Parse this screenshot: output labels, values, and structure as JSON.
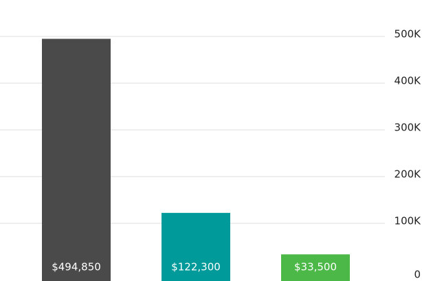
{
  "chart_data": {
    "type": "bar",
    "values": [
      494850,
      122300,
      33500
    ],
    "value_labels": [
      "$494,850",
      "$122,300",
      "$33,500"
    ],
    "colors": [
      "#4a4a4a",
      "#009a9a",
      "#4cb848"
    ],
    "ylim": [
      0,
      500000
    ],
    "yticks": [
      0,
      {
        "value": 100000,
        "label": "100K"
      },
      {
        "value": 200000,
        "label": "200K"
      },
      {
        "value": 300000,
        "label": "300K"
      },
      {
        "value": 400000,
        "label": "400K"
      },
      {
        "value": 500000,
        "label": "500K"
      }
    ],
    "grid": true
  }
}
